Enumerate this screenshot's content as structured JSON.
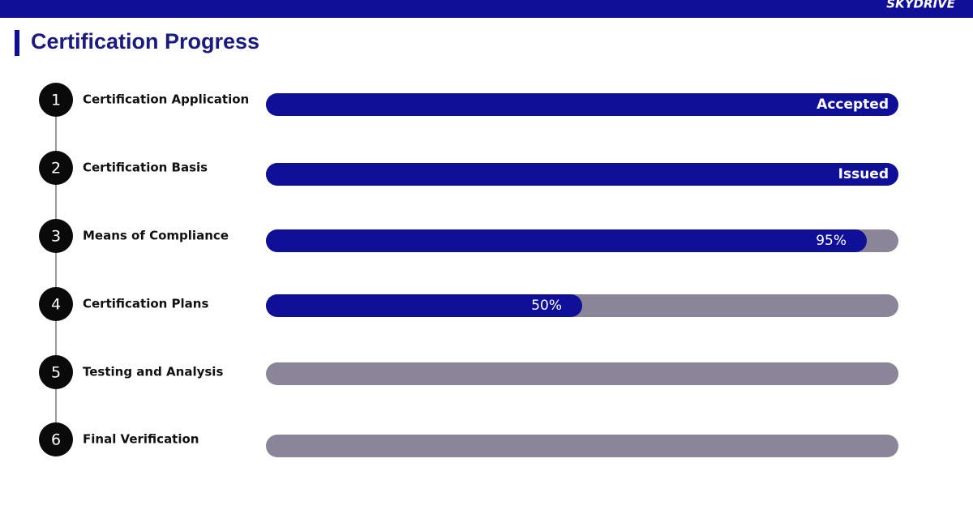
{
  "logo": "SKYDRIVE",
  "chart_data": {
    "type": "bar",
    "orientation": "horizontal",
    "title": "Certification Progress",
    "steps": [
      1,
      2,
      3,
      4,
      5,
      6
    ],
    "categories": [
      "Certification Application",
      "Certification Basis",
      "Means of Compliance",
      "Certification Plans",
      "Testing and Analysis",
      "Final Verification"
    ],
    "values": [
      100,
      100,
      95,
      50,
      0,
      0
    ],
    "value_labels": [
      "Accepted",
      "Issued",
      "95%",
      "50%",
      null,
      null
    ],
    "color": "#0f0f98",
    "track_color": "#8a8599",
    "xlim": [
      0,
      100
    ]
  }
}
